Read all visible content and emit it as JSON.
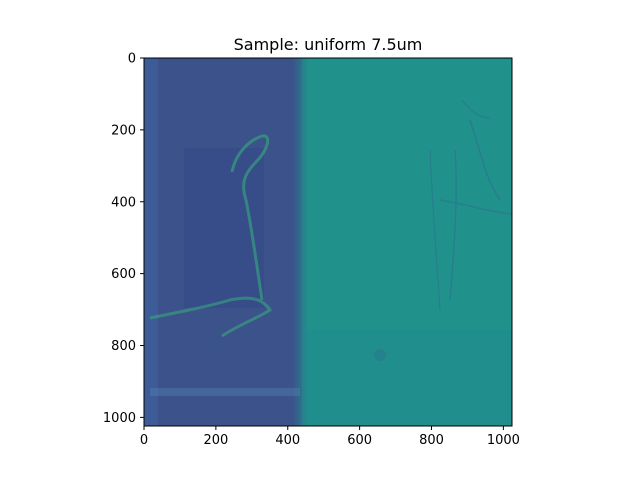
{
  "chart_data": {
    "type": "heatmap",
    "title": "Sample: uniform 7.5um",
    "xlabel": "",
    "ylabel": "",
    "xlim": [
      0,
      1024
    ],
    "ylim": [
      1024,
      0
    ],
    "x_ticks": [
      0,
      200,
      400,
      600,
      800,
      1000
    ],
    "y_ticks": [
      0,
      200,
      400,
      600,
      800,
      1000
    ],
    "colormap": "viridis",
    "colors": {
      "left_region": "#3b528b",
      "right_region": "#21918c",
      "highlight": "#35b779",
      "crack": "#2a788e",
      "background": "#ffffff"
    },
    "regions": [
      {
        "name": "left",
        "x": [
          0,
          440
        ],
        "y": [
          0,
          1024
        ],
        "level": 0.25
      },
      {
        "name": "right",
        "x": [
          440,
          1024
        ],
        "y": [
          0,
          1024
        ],
        "level": 0.5
      }
    ],
    "image_size": [
      1024,
      1024
    ],
    "grid": false
  }
}
